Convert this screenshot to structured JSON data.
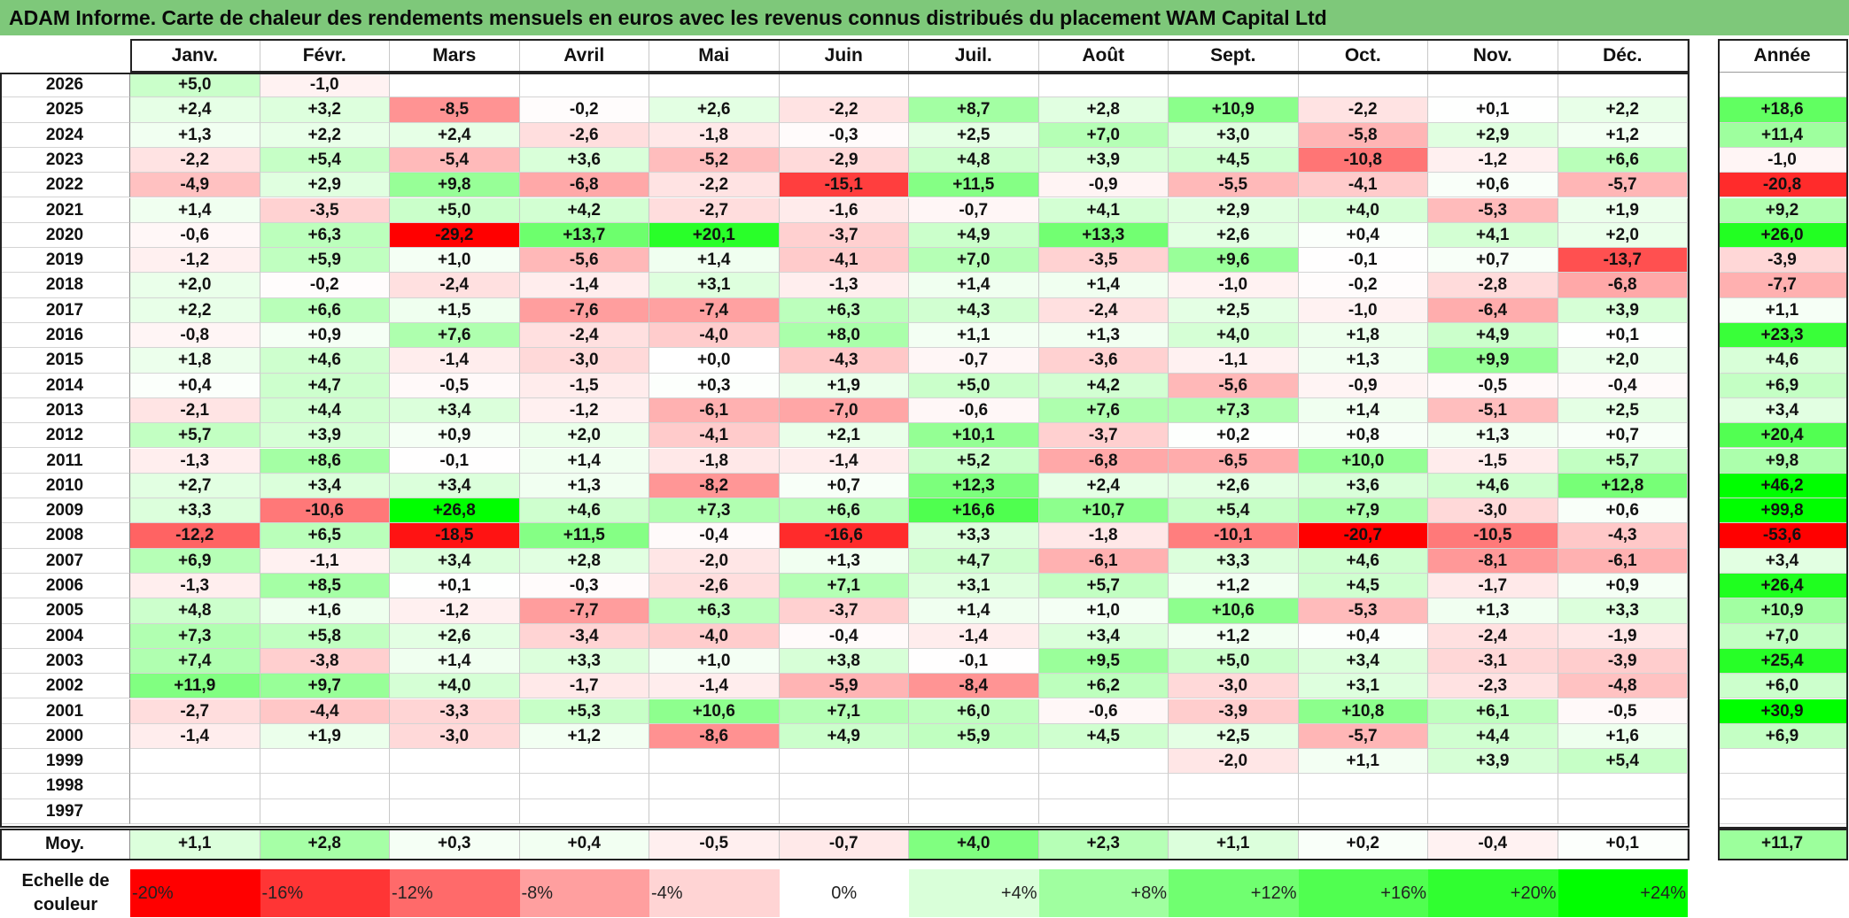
{
  "title": "ADAM Informe. Carte de chaleur des rendements mensuels en euros avec les revenus connus distribués du placement WAM Capital Ltd",
  "months": [
    "Janv.",
    "Févr.",
    "Mars",
    "Avril",
    "Mai",
    "Juin",
    "Juil.",
    "Août",
    "Sept.",
    "Oct.",
    "Nov.",
    "Déc."
  ],
  "year_header": "Année",
  "avg_label": "Moy.",
  "scale_label": "Echelle de couleur",
  "chart_data": {
    "type": "heatmap",
    "title": "ADAM Informe. Carte de chaleur des rendements mensuels en euros avec les revenus connus distribués du placement WAM Capital Ltd",
    "x": [
      "Janv.",
      "Févr.",
      "Mars",
      "Avril",
      "Mai",
      "Juin",
      "Juil.",
      "Août",
      "Sept.",
      "Oct.",
      "Nov.",
      "Déc."
    ],
    "rows": [
      {
        "year": "2026",
        "values": [
          "+5,0",
          "-1,0",
          "",
          "",
          "",
          "",
          "",
          "",
          "",
          "",
          "",
          ""
        ],
        "annual": ""
      },
      {
        "year": "2025",
        "values": [
          "+2,4",
          "+3,2",
          "-8,5",
          "-0,2",
          "+2,6",
          "-2,2",
          "+8,7",
          "+2,8",
          "+10,9",
          "-2,2",
          "+0,1",
          "+2,2"
        ],
        "annual": "+18,6"
      },
      {
        "year": "2024",
        "values": [
          "+1,3",
          "+2,2",
          "+2,4",
          "-2,6",
          "-1,8",
          "-0,3",
          "+2,5",
          "+7,0",
          "+3,0",
          "-5,8",
          "+2,9",
          "+1,2"
        ],
        "annual": "+11,4"
      },
      {
        "year": "2023",
        "values": [
          "-2,2",
          "+5,4",
          "-5,4",
          "+3,6",
          "-5,2",
          "-2,9",
          "+4,8",
          "+3,9",
          "+4,5",
          "-10,8",
          "-1,2",
          "+6,6"
        ],
        "annual": "-1,0"
      },
      {
        "year": "2022",
        "values": [
          "-4,9",
          "+2,9",
          "+9,8",
          "-6,8",
          "-2,2",
          "-15,1",
          "+11,5",
          "-0,9",
          "-5,5",
          "-4,1",
          "+0,6",
          "-5,7"
        ],
        "annual": "-20,8"
      },
      {
        "year": "2021",
        "values": [
          "+1,4",
          "-3,5",
          "+5,0",
          "+4,2",
          "-2,7",
          "-1,6",
          "-0,7",
          "+4,1",
          "+2,9",
          "+4,0",
          "-5,3",
          "+1,9"
        ],
        "annual": "+9,2"
      },
      {
        "year": "2020",
        "values": [
          "-0,6",
          "+6,3",
          "-29,2",
          "+13,7",
          "+20,1",
          "-3,7",
          "+4,9",
          "+13,3",
          "+2,6",
          "+0,4",
          "+4,1",
          "+2,0"
        ],
        "annual": "+26,0"
      },
      {
        "year": "2019",
        "values": [
          "-1,2",
          "+5,9",
          "+1,0",
          "-5,6",
          "+1,4",
          "-4,1",
          "+7,0",
          "-3,5",
          "+9,6",
          "-0,1",
          "+0,7",
          "-13,7"
        ],
        "annual": "-3,9"
      },
      {
        "year": "2018",
        "values": [
          "+2,0",
          "-0,2",
          "-2,4",
          "-1,4",
          "+3,1",
          "-1,3",
          "+1,4",
          "+1,4",
          "-1,0",
          "-0,2",
          "-2,8",
          "-6,8"
        ],
        "annual": "-7,7"
      },
      {
        "year": "2017",
        "values": [
          "+2,2",
          "+6,6",
          "+1,5",
          "-7,6",
          "-7,4",
          "+6,3",
          "+4,3",
          "-2,4",
          "+2,5",
          "-1,0",
          "-6,4",
          "+3,9"
        ],
        "annual": "+1,1"
      },
      {
        "year": "2016",
        "values": [
          "-0,8",
          "+0,9",
          "+7,6",
          "-2,4",
          "-4,0",
          "+8,0",
          "+1,1",
          "+1,3",
          "+4,0",
          "+1,8",
          "+4,9",
          "+0,1"
        ],
        "annual": "+23,3"
      },
      {
        "year": "2015",
        "values": [
          "+1,8",
          "+4,6",
          "-1,4",
          "-3,0",
          "+0,0",
          "-4,3",
          "-0,7",
          "-3,6",
          "-1,1",
          "+1,3",
          "+9,9",
          "+2,0"
        ],
        "annual": "+4,6"
      },
      {
        "year": "2014",
        "values": [
          "+0,4",
          "+4,7",
          "-0,5",
          "-1,5",
          "+0,3",
          "+1,9",
          "+5,0",
          "+4,2",
          "-5,6",
          "-0,9",
          "-0,5",
          "-0,4"
        ],
        "annual": "+6,9"
      },
      {
        "year": "2013",
        "values": [
          "-2,1",
          "+4,4",
          "+3,4",
          "-1,2",
          "-6,1",
          "-7,0",
          "-0,6",
          "+7,6",
          "+7,3",
          "+1,4",
          "-5,1",
          "+2,5"
        ],
        "annual": "+3,4"
      },
      {
        "year": "2012",
        "values": [
          "+5,7",
          "+3,9",
          "+0,9",
          "+2,0",
          "-4,1",
          "+2,1",
          "+10,1",
          "-3,7",
          "+0,2",
          "+0,8",
          "+1,3",
          "+0,7"
        ],
        "annual": "+20,4"
      },
      {
        "year": "2011",
        "values": [
          "-1,3",
          "+8,6",
          "-0,1",
          "+1,4",
          "-1,8",
          "-1,4",
          "+5,2",
          "-6,8",
          "-6,5",
          "+10,0",
          "-1,5",
          "+5,7"
        ],
        "annual": "+9,8"
      },
      {
        "year": "2010",
        "values": [
          "+2,7",
          "+3,4",
          "+3,4",
          "+1,3",
          "-8,2",
          "+0,7",
          "+12,3",
          "+2,4",
          "+2,6",
          "+3,6",
          "+4,6",
          "+12,8"
        ],
        "annual": "+46,2"
      },
      {
        "year": "2009",
        "values": [
          "+3,3",
          "-10,6",
          "+26,8",
          "+4,6",
          "+7,3",
          "+6,6",
          "+16,6",
          "+10,7",
          "+5,4",
          "+7,9",
          "-3,0",
          "+0,6"
        ],
        "annual": "+99,8"
      },
      {
        "year": "2008",
        "values": [
          "-12,2",
          "+6,5",
          "-18,5",
          "+11,5",
          "-0,4",
          "-16,6",
          "+3,3",
          "-1,8",
          "-10,1",
          "-20,7",
          "-10,5",
          "-4,3"
        ],
        "annual": "-53,6"
      },
      {
        "year": "2007",
        "values": [
          "+6,9",
          "-1,1",
          "+3,4",
          "+2,8",
          "-2,0",
          "+1,3",
          "+4,7",
          "-6,1",
          "+3,3",
          "+4,6",
          "-8,1",
          "-6,1"
        ],
        "annual": "+3,4"
      },
      {
        "year": "2006",
        "values": [
          "-1,3",
          "+8,5",
          "+0,1",
          "-0,3",
          "-2,6",
          "+7,1",
          "+3,1",
          "+5,7",
          "+1,2",
          "+4,5",
          "-1,7",
          "+0,9"
        ],
        "annual": "+26,4"
      },
      {
        "year": "2005",
        "values": [
          "+4,8",
          "+1,6",
          "-1,2",
          "-7,7",
          "+6,3",
          "-3,7",
          "+1,4",
          "+1,0",
          "+10,6",
          "-5,3",
          "+1,3",
          "+3,3"
        ],
        "annual": "+10,9"
      },
      {
        "year": "2004",
        "values": [
          "+7,3",
          "+5,8",
          "+2,6",
          "-3,4",
          "-4,0",
          "-0,4",
          "-1,4",
          "+3,4",
          "+1,2",
          "+0,4",
          "-2,4",
          "-1,9"
        ],
        "annual": "+7,0"
      },
      {
        "year": "2003",
        "values": [
          "+7,4",
          "-3,8",
          "+1,4",
          "+3,3",
          "+1,0",
          "+3,8",
          "-0,1",
          "+9,5",
          "+5,0",
          "+3,4",
          "-3,1",
          "-3,9"
        ],
        "annual": "+25,4"
      },
      {
        "year": "2002",
        "values": [
          "+11,9",
          "+9,7",
          "+4,0",
          "-1,7",
          "-1,4",
          "-5,9",
          "-8,4",
          "+6,2",
          "-3,0",
          "+3,1",
          "-2,3",
          "-4,8"
        ],
        "annual": "+6,0"
      },
      {
        "year": "2001",
        "values": [
          "-2,7",
          "-4,4",
          "-3,3",
          "+5,3",
          "+10,6",
          "+7,1",
          "+6,0",
          "-0,6",
          "-3,9",
          "+10,8",
          "+6,1",
          "-0,5"
        ],
        "annual": "+30,9"
      },
      {
        "year": "2000",
        "values": [
          "-1,4",
          "+1,9",
          "-3,0",
          "+1,2",
          "-8,6",
          "+4,9",
          "+5,9",
          "+4,5",
          "+2,5",
          "-5,7",
          "+4,4",
          "+1,6"
        ],
        "annual": "+6,9"
      },
      {
        "year": "1999",
        "values": [
          "",
          "",
          "",
          "",
          "",
          "",
          "",
          "",
          "-2,0",
          "+1,1",
          "+3,9",
          "+5,4"
        ],
        "annual": ""
      },
      {
        "year": "1998",
        "values": [
          "",
          "",
          "",
          "",
          "",
          "",
          "",
          "",
          "",
          "",
          "",
          ""
        ],
        "annual": ""
      },
      {
        "year": "1997",
        "values": [
          "",
          "",
          "",
          "",
          "",
          "",
          "",
          "",
          "",
          "",
          "",
          ""
        ],
        "annual": ""
      }
    ],
    "average": {
      "values": [
        "+1,1",
        "+2,8",
        "+0,3",
        "+0,4",
        "-0,5",
        "-0,7",
        "+4,0",
        "+2,3",
        "+1,1",
        "+0,2",
        "-0,4",
        "+0,1"
      ],
      "annual": "+11,7"
    },
    "color_scale": {
      "labels": [
        "-20%",
        "-16%",
        "-12%",
        "-8%",
        "-4%",
        "0%",
        "+4%",
        "+8%",
        "+12%",
        "+16%",
        "+20%",
        "+24%"
      ],
      "colors": [
        "#ff0000",
        "#ff3535",
        "#ff6a6a",
        "#ff9f9f",
        "#ffd4d4",
        "#ffffff",
        "#d9ffd9",
        "#a0ffa0",
        "#70ff70",
        "#50ff50",
        "#30ff30",
        "#00ff00"
      ]
    },
    "colors": {
      "negative_max": "#ff0000",
      "positive_max": "#00ff00",
      "neutral": "#ffffff",
      "title_bar": "#7ec87a"
    }
  }
}
